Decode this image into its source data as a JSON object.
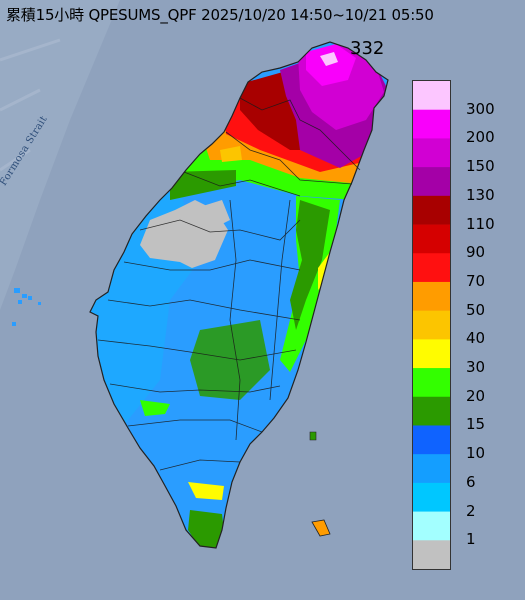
{
  "header": {
    "title": "累積15小時 QPESUMS_QPF 2025/10/20 14:50~10/21 05:50",
    "max_value": "332",
    "strait_label": "Formosa Strait"
  },
  "legend": {
    "labels": [
      "300",
      "200",
      "150",
      "130",
      "110",
      "90",
      "70",
      "50",
      "40",
      "30",
      "20",
      "15",
      "10",
      "6",
      "2",
      "1"
    ],
    "colors": [
      "#fcc6ff",
      "#f900fb",
      "#d100d3",
      "#a400a7",
      "#a80000",
      "#d50000",
      "#ff1010",
      "#ff9c00",
      "#fcc500",
      "#fffc00",
      "#33ff00",
      "#2b9a00",
      "#0f63ff",
      "#149eff",
      "#00c7ff",
      "#a3ffff",
      "#c1c1c1"
    ]
  },
  "palette": {
    "sea": "#8fa2bd",
    "base_rain": "#2a9dff",
    "outline": "#222222"
  }
}
